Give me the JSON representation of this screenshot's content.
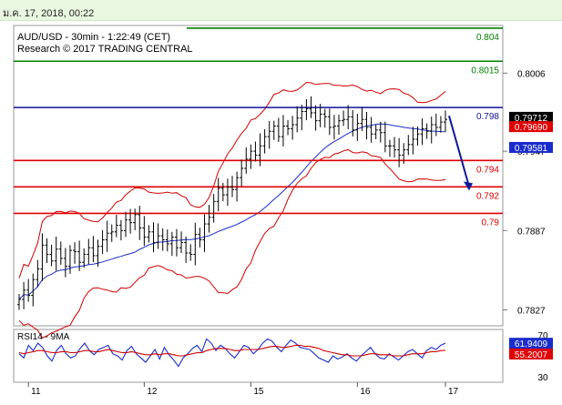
{
  "timestamp": "ม.ค. 17, 2018, 00:22",
  "chart_title": "AUD/USD - 30min - 1:22:49 (CET)",
  "copyright": "Research © 2017 TRADING CENTRAL",
  "rsi_label": "RSI14 - 9MA",
  "colors": {
    "resistance": "#008000",
    "support": "#e00000",
    "pivot": "#1010a0",
    "bollinger": "#d00000",
    "ma": "#1a2ccc",
    "arrow": "#0a1a9a",
    "rsi": "#1a2ccc",
    "rsi_ma": "#d00000"
  },
  "chart_data": [
    {
      "type": "candlestick",
      "title": "AUD/USD - 30min - 1:22:49 (CET)",
      "x_tick_labels": [
        "11",
        "12",
        "15",
        "16",
        "17"
      ],
      "y_tick_labels": [
        "0.8006",
        "0.7947",
        "0.7887",
        "0.7827"
      ],
      "y_ticks": [
        0.8006,
        0.7947,
        0.7887,
        0.7827
      ],
      "ylim": [
        0.7815,
        0.8042
      ],
      "levels": [
        {
          "label": "0.804",
          "value": 0.804,
          "kind": "resistance"
        },
        {
          "label": "0.8015",
          "value": 0.8015,
          "kind": "resistance"
        },
        {
          "label": "0.798",
          "value": 0.798,
          "kind": "pivot"
        },
        {
          "label": "0.794",
          "value": 0.794,
          "kind": "support"
        },
        {
          "label": "0.792",
          "value": 0.792,
          "kind": "support"
        },
        {
          "label": "0.79",
          "value": 0.79,
          "kind": "support"
        }
      ],
      "price_tags": [
        {
          "label": "0.79712",
          "value": 0.79712,
          "color": "#000000"
        },
        {
          "label": "0.79690",
          "value": 0.7969,
          "color": "#e00000"
        },
        {
          "label": "0.79581",
          "value": 0.79581,
          "color": "#1a2ccc"
        }
      ],
      "close_path": [
        0.7835,
        0.7842,
        0.7838,
        0.785,
        0.7858,
        0.7876,
        0.7869,
        0.7864,
        0.7873,
        0.7866,
        0.786,
        0.7872,
        0.7871,
        0.7863,
        0.7869,
        0.7874,
        0.7868,
        0.7875,
        0.788,
        0.7885,
        0.7886,
        0.7891,
        0.7887,
        0.7895,
        0.7893,
        0.7899,
        0.7889,
        0.7882,
        0.7886,
        0.7878,
        0.7883,
        0.788,
        0.7877,
        0.7882,
        0.7874,
        0.7878,
        0.787,
        0.7869,
        0.7884,
        0.788,
        0.7892,
        0.7897,
        0.7909,
        0.7919,
        0.7914,
        0.792,
        0.7918,
        0.7927,
        0.7934,
        0.7941,
        0.7947,
        0.7944,
        0.7951,
        0.7958,
        0.7962,
        0.7966,
        0.7958,
        0.7966,
        0.7964,
        0.7967,
        0.7972,
        0.7977,
        0.7979,
        0.7976,
        0.797,
        0.7975,
        0.7973,
        0.7965,
        0.7966,
        0.797,
        0.7971,
        0.7973,
        0.7963,
        0.7968,
        0.7971,
        0.7965,
        0.796,
        0.7963,
        0.7961,
        0.7951,
        0.7951,
        0.7948,
        0.7944,
        0.7948,
        0.7952,
        0.7956,
        0.796,
        0.7964,
        0.7962,
        0.7967,
        0.7965,
        0.7969,
        0.7971
      ],
      "forecast_target": 0.792
    },
    {
      "type": "line",
      "title": "RSI14 - 9MA",
      "y_tick_labels": [
        "70",
        "30"
      ],
      "ylim": [
        25,
        75
      ],
      "series": [
        {
          "name": "RSI14",
          "values": [
            52,
            48,
            60,
            55,
            62,
            58,
            50,
            45,
            55,
            60,
            52,
            48,
            50,
            57,
            62,
            55,
            51,
            56,
            58,
            60,
            52,
            50,
            46,
            55,
            59,
            52,
            48,
            44,
            50,
            56,
            47,
            58,
            51,
            46,
            40,
            48,
            52,
            57,
            60,
            54,
            66,
            62,
            55,
            60,
            57,
            52,
            48,
            54,
            60,
            58,
            52,
            56,
            62,
            66,
            64,
            58,
            54,
            60,
            65,
            62,
            58,
            57,
            56,
            52,
            48,
            46,
            44,
            50,
            47,
            49,
            52,
            48,
            45,
            50,
            54,
            58,
            52,
            48,
            47,
            52,
            49,
            46,
            50,
            54,
            56,
            52,
            48,
            55,
            58,
            56,
            60,
            61.9409
          ]
        },
        {
          "name": "9MA",
          "values": [
            53,
            52,
            53,
            54,
            55,
            55,
            54,
            53,
            53,
            54,
            54,
            53,
            53,
            54,
            55,
            55,
            54,
            54,
            55,
            56,
            55,
            54,
            53,
            53,
            54,
            53,
            52,
            51,
            51,
            52,
            51,
            52,
            52,
            51,
            50,
            50,
            51,
            52,
            53,
            53,
            55,
            56,
            57,
            57,
            57,
            56,
            55,
            55,
            56,
            56,
            56,
            56,
            57,
            58,
            59,
            59,
            58,
            58,
            59,
            60,
            60,
            59,
            59,
            58,
            57,
            55,
            54,
            53,
            52,
            51,
            51,
            50,
            50,
            50,
            51,
            52,
            52,
            51,
            51,
            51,
            50,
            50,
            50,
            51,
            52,
            52,
            52,
            53,
            54,
            54,
            55,
            55.2007
          ]
        }
      ],
      "value_tags": [
        {
          "label": "61.9409",
          "color": "#1a2ccc"
        },
        {
          "label": "55.2007",
          "color": "#e00000"
        }
      ]
    }
  ]
}
